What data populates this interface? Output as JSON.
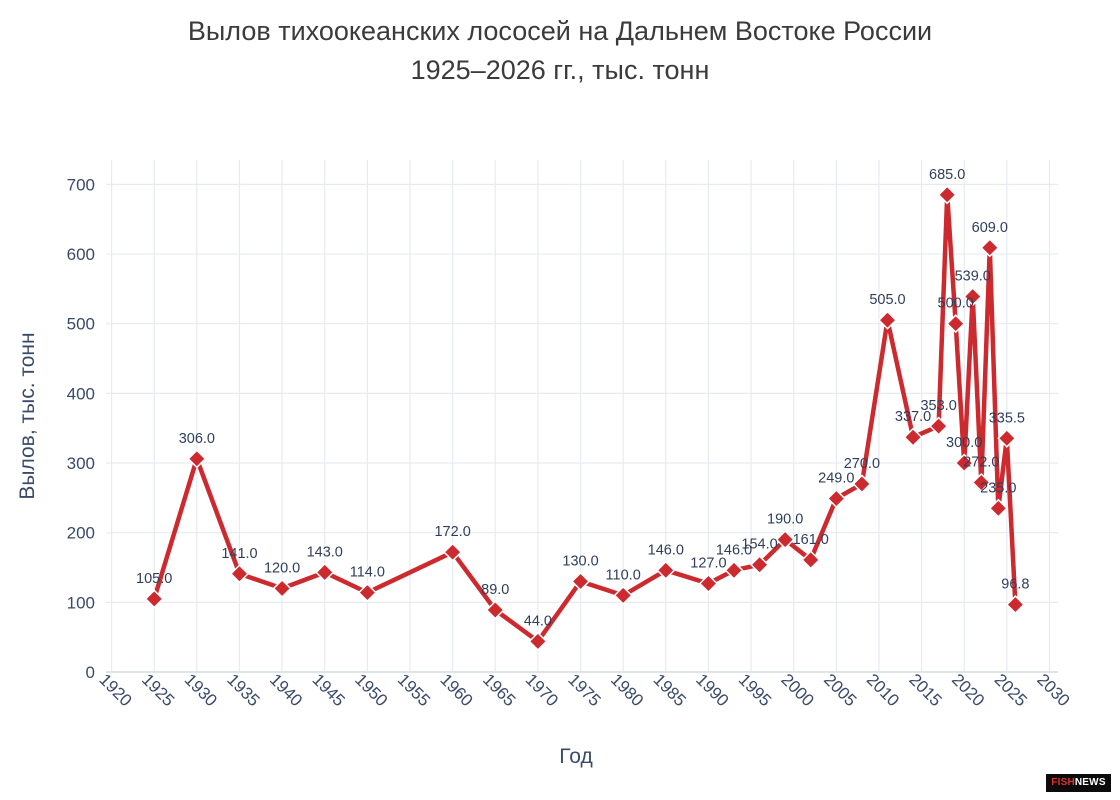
{
  "title_line1": "Вылов тихоокеанских лососей на Дальнем Востоке России",
  "title_line2": "1925–2026 гг., тыс. тонн",
  "watermark": {
    "accent": "FISH",
    "rest": "NEWS"
  },
  "chart_data": {
    "type": "line",
    "xlabel": "Год",
    "ylabel": "Вылов, тыс. тонн",
    "xlim": [
      1917,
      2031
    ],
    "ylim": [
      0,
      735
    ],
    "x_ticks": [
      1920,
      1925,
      1930,
      1935,
      1940,
      1945,
      1950,
      1955,
      1960,
      1965,
      1970,
      1975,
      1980,
      1985,
      1990,
      1995,
      2000,
      2005,
      2010,
      2015,
      2020,
      2025,
      2030
    ],
    "y_ticks": [
      0,
      100,
      200,
      300,
      400,
      500,
      600,
      700
    ],
    "grid": true,
    "color": "#cc2a2f",
    "marker": "diamond",
    "series": [
      {
        "x": [
          1925,
          1930,
          1935,
          1940,
          1945,
          1950,
          1960,
          1965,
          1970,
          1975,
          1980,
          1985,
          1990,
          1993,
          1996,
          1999,
          2002,
          2005,
          2008,
          2011,
          2014,
          2017,
          2018,
          2019,
          2020,
          2021,
          2022,
          2023,
          2024,
          2025,
          2026
        ],
        "y": [
          105.0,
          306.0,
          141.0,
          120.0,
          143.0,
          114.0,
          172.0,
          89.0,
          44.0,
          130.0,
          110.0,
          146.0,
          127.0,
          146.0,
          154.0,
          190.0,
          161.0,
          249.0,
          270.0,
          505.0,
          337.0,
          353.0,
          685.0,
          500.0,
          300.0,
          539.0,
          272.0,
          609.0,
          235.0,
          335.5,
          96.8
        ],
        "labels": [
          "105.0",
          "306.0",
          "141.0",
          "120.0",
          "143.0",
          "114.0",
          "172.0",
          "89.0",
          "44.0",
          "130.0",
          "110.0",
          "146.0",
          "127.0",
          "146.0",
          "154.0",
          "190.0",
          "161.0",
          "249.0",
          "270.0",
          "505.0",
          "337.0",
          "353.0",
          "685.0",
          "500.0",
          "300.0",
          "539.0",
          "272.0",
          "609.0",
          "235.0",
          "335.5",
          "96.8"
        ]
      }
    ]
  }
}
